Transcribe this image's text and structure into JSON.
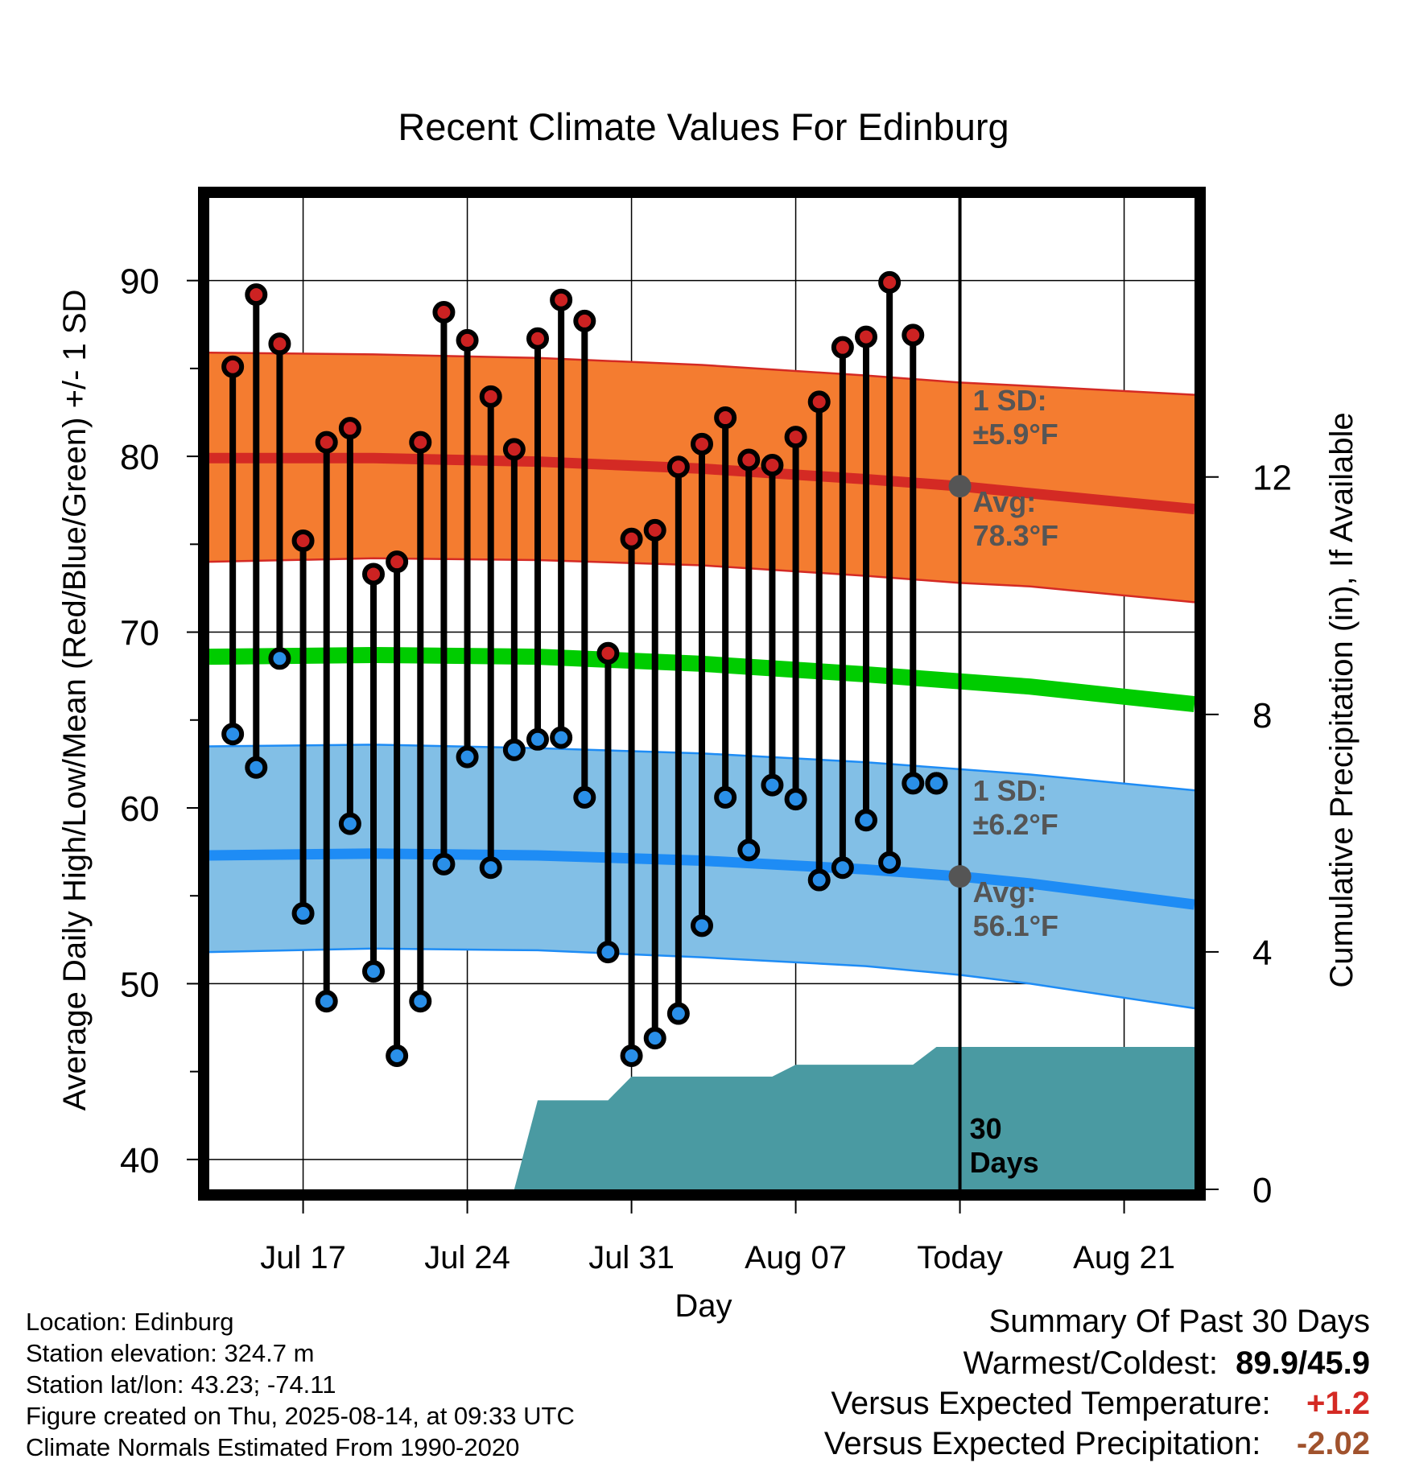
{
  "chart_data": {
    "type": "line",
    "title": "Recent Climate Values For Edinburg",
    "xlabel": "Day",
    "ylabel": "Average Daily High/Low/Mean (Red/Blue/Green) +/- 1 SD",
    "y2label": "Cumulative Precipitation (in), If Available",
    "ylim": [
      38.3,
      94.7
    ],
    "y_ticks": [
      40,
      50,
      60,
      70,
      80,
      90
    ],
    "y2lim": [
      0,
      16.7
    ],
    "y2_ticks": [
      0,
      4,
      8,
      12
    ],
    "x_range": [
      "2025-07-13",
      "2025-08-24"
    ],
    "x_ticks": [
      {
        "date": "2025-07-17",
        "label": "Jul 17"
      },
      {
        "date": "2025-07-24",
        "label": "Jul 24"
      },
      {
        "date": "2025-07-31",
        "label": "Jul 31"
      },
      {
        "date": "2025-08-07",
        "label": "Aug 07"
      },
      {
        "date": "2025-08-14",
        "label": "Today"
      },
      {
        "date": "2025-08-21",
        "label": "Aug 21"
      }
    ],
    "grid": true,
    "today": "2025-08-14",
    "normal_high": {
      "dates": [
        "2025-07-13",
        "2025-07-20",
        "2025-07-27",
        "2025-08-03",
        "2025-08-10",
        "2025-08-14",
        "2025-08-17",
        "2025-08-24"
      ],
      "mean": [
        79.9,
        79.9,
        79.7,
        79.3,
        78.7,
        78.3,
        77.9,
        77.0
      ],
      "upper": [
        85.9,
        85.8,
        85.6,
        85.2,
        84.6,
        84.2,
        84.0,
        83.5
      ],
      "lower": [
        74.0,
        74.2,
        74.1,
        73.8,
        73.2,
        72.8,
        72.6,
        71.7
      ]
    },
    "normal_mean": {
      "dates": [
        "2025-07-13",
        "2025-07-20",
        "2025-07-27",
        "2025-08-03",
        "2025-08-10",
        "2025-08-14",
        "2025-08-17",
        "2025-08-24"
      ],
      "values": [
        68.6,
        68.7,
        68.6,
        68.2,
        67.6,
        67.2,
        66.9,
        65.9
      ]
    },
    "normal_low": {
      "dates": [
        "2025-07-13",
        "2025-07-20",
        "2025-07-27",
        "2025-08-03",
        "2025-08-10",
        "2025-08-14",
        "2025-08-17",
        "2025-08-24"
      ],
      "mean": [
        57.3,
        57.4,
        57.3,
        57.0,
        56.5,
        56.1,
        55.7,
        54.5
      ],
      "upper": [
        63.5,
        63.6,
        63.4,
        63.1,
        62.6,
        62.2,
        61.9,
        61.0
      ],
      "lower": [
        51.8,
        52.0,
        51.9,
        51.5,
        51.0,
        50.5,
        50.0,
        48.6
      ]
    },
    "series": [
      {
        "name": "High",
        "dates": [
          "2025-07-14",
          "2025-07-15",
          "2025-07-16",
          "2025-07-17",
          "2025-07-18",
          "2025-07-19",
          "2025-07-20",
          "2025-07-21",
          "2025-07-22",
          "2025-07-23",
          "2025-07-24",
          "2025-07-25",
          "2025-07-26",
          "2025-07-27",
          "2025-07-28",
          "2025-07-29",
          "2025-07-30",
          "2025-07-31",
          "2025-08-01",
          "2025-08-02",
          "2025-08-03",
          "2025-08-04",
          "2025-08-05",
          "2025-08-06",
          "2025-08-07",
          "2025-08-08",
          "2025-08-09",
          "2025-08-10",
          "2025-08-11",
          "2025-08-12",
          "2025-08-13"
        ],
        "values": [
          85.1,
          89.2,
          86.4,
          75.2,
          80.8,
          81.6,
          73.3,
          74.0,
          80.8,
          88.2,
          86.6,
          83.4,
          80.4,
          86.7,
          88.9,
          87.7,
          68.8,
          75.3,
          75.8,
          79.4,
          80.7,
          82.2,
          79.8,
          79.5,
          81.1,
          83.1,
          86.2,
          86.8,
          89.9,
          86.9,
          61.4
        ]
      },
      {
        "name": "Low",
        "dates": [
          "2025-07-14",
          "2025-07-15",
          "2025-07-16",
          "2025-07-17",
          "2025-07-18",
          "2025-07-19",
          "2025-07-20",
          "2025-07-21",
          "2025-07-22",
          "2025-07-23",
          "2025-07-24",
          "2025-07-25",
          "2025-07-26",
          "2025-07-27",
          "2025-07-28",
          "2025-07-29",
          "2025-07-30",
          "2025-07-31",
          "2025-08-01",
          "2025-08-02",
          "2025-08-03",
          "2025-08-04",
          "2025-08-05",
          "2025-08-06",
          "2025-08-07",
          "2025-08-08",
          "2025-08-09",
          "2025-08-10",
          "2025-08-11",
          "2025-08-12",
          "2025-08-13"
        ],
        "values": [
          64.2,
          62.3,
          68.5,
          54.0,
          49.0,
          59.1,
          50.7,
          45.9,
          49.0,
          56.8,
          62.9,
          56.6,
          63.3,
          63.9,
          64.0,
          60.6,
          51.8,
          45.9,
          46.9,
          48.3,
          53.3,
          60.6,
          57.6,
          61.3,
          60.5,
          55.9,
          56.6,
          59.3,
          56.9,
          61.4,
          61.4
        ]
      }
    ],
    "cumulative_precip": {
      "dates": [
        "2025-07-13",
        "2025-07-26",
        "2025-07-27",
        "2025-07-30",
        "2025-07-31",
        "2025-08-06",
        "2025-08-07",
        "2025-08-12",
        "2025-08-13",
        "2025-08-24"
      ],
      "values": [
        0,
        0,
        1.5,
        1.5,
        1.9,
        1.9,
        2.1,
        2.1,
        2.4,
        2.4
      ]
    },
    "high_annotation": {
      "sd_label": "1 SD:",
      "sd_value": "±5.9°F",
      "avg_label": "Avg:",
      "avg_value": "78.3°F"
    },
    "low_annotation": {
      "sd_label": "1 SD:",
      "sd_value": "±6.2°F",
      "avg_label": "Avg:",
      "avg_value": "56.1°F"
    },
    "precip_label": [
      "30",
      "Days"
    ],
    "colors": {
      "high_band": "#f47c30",
      "high_line": "#d42a24",
      "high_edge": "#d42a24",
      "low_band": "#82bfe6",
      "low_line": "#1e8cf5",
      "low_edge": "#1e8cf5",
      "mean_line": "#00cc00",
      "precip": "#4a9aa2",
      "high_dot": "#cc2222",
      "low_dot": "#2a8fe8",
      "annotation": "#555555",
      "plus_color": "#d42a24",
      "minus_color": "#a0522d"
    }
  },
  "info": {
    "location": "Location: Edinburg",
    "elevation": "Station elevation: 324.7 m",
    "latlon": "Station lat/lon: 43.23; -74.11",
    "created": "Figure created on Thu, 2025-08-14, at 09:33 UTC",
    "normals": "Climate Normals Estimated From 1990-2020"
  },
  "summary": {
    "title": "Summary Of Past 30 Days",
    "warm_cold_label": "Warmest/Coldest:",
    "warm_cold_value": "89.9/45.9",
    "temp_label": "Versus Expected Temperature:",
    "temp_value": "+1.2",
    "precip_label": "Versus Expected Precipitation:",
    "precip_value": "-2.02"
  }
}
